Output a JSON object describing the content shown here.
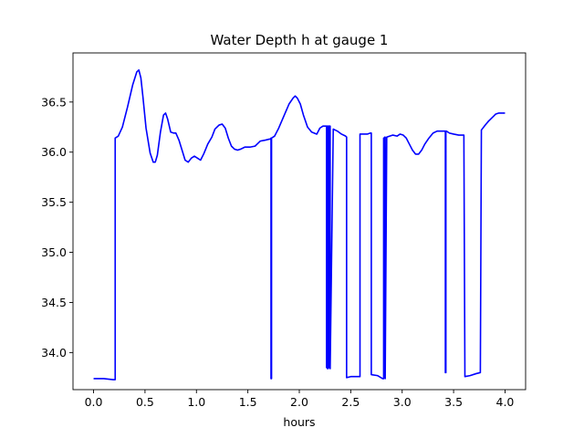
{
  "chart_data": {
    "type": "line",
    "title": "Water Depth h at gauge 1",
    "xlabel": "hours",
    "ylabel": "",
    "xlim": [
      -0.2,
      4.2
    ],
    "ylim": [
      33.63,
      36.99
    ],
    "xticks": [
      0.0,
      0.5,
      1.0,
      1.5,
      2.0,
      2.5,
      3.0,
      3.5,
      4.0
    ],
    "xtick_labels": [
      "0.0",
      "0.5",
      "1.0",
      "1.5",
      "2.0",
      "2.5",
      "3.0",
      "3.5",
      "4.0"
    ],
    "yticks": [
      34.0,
      34.5,
      35.0,
      35.5,
      36.0,
      36.5
    ],
    "ytick_labels": [
      "34.0",
      "34.5",
      "35.0",
      "35.5",
      "36.0",
      "36.5"
    ],
    "grid": false,
    "legend": "none",
    "series": [
      {
        "color": "#0000ff",
        "x": [
          0.0,
          0.1,
          0.19,
          0.21,
          0.21,
          0.24,
          0.28,
          0.33,
          0.38,
          0.42,
          0.44,
          0.46,
          0.48,
          0.51,
          0.55,
          0.58,
          0.6,
          0.62,
          0.65,
          0.68,
          0.7,
          0.72,
          0.75,
          0.78,
          0.8,
          0.83,
          0.86,
          0.89,
          0.92,
          0.95,
          0.98,
          1.01,
          1.04,
          1.07,
          1.11,
          1.15,
          1.18,
          1.22,
          1.25,
          1.28,
          1.31,
          1.34,
          1.37,
          1.4,
          1.43,
          1.47,
          1.52,
          1.57,
          1.62,
          1.67,
          1.71,
          1.72,
          1.725,
          1.725,
          1.73,
          1.73,
          1.76,
          1.8,
          1.85,
          1.9,
          1.94,
          1.96,
          1.98,
          2.01,
          2.04,
          2.08,
          2.12,
          2.17,
          2.2,
          2.23,
          2.26,
          2.265,
          2.265,
          2.27,
          2.27,
          2.275,
          2.275,
          2.28,
          2.28,
          2.29,
          2.29,
          2.295,
          2.295,
          2.3,
          2.3,
          2.33,
          2.37,
          2.41,
          2.45,
          2.46,
          2.46,
          2.5,
          2.55,
          2.58,
          2.59,
          2.59,
          2.63,
          2.66,
          2.69,
          2.7,
          2.7,
          2.76,
          2.81,
          2.82,
          2.82,
          2.825,
          2.825,
          2.83,
          2.83,
          2.835,
          2.835,
          2.85,
          2.88,
          2.91,
          2.95,
          2.98,
          3.01,
          3.04,
          3.07,
          3.1,
          3.13,
          3.16,
          3.19,
          3.22,
          3.26,
          3.3,
          3.34,
          3.38,
          3.41,
          3.42,
          3.42,
          3.425,
          3.425,
          3.43,
          3.43,
          3.46,
          3.5,
          3.55,
          3.6,
          3.61,
          3.61,
          3.66,
          3.72,
          3.76,
          3.77,
          3.77,
          3.8,
          3.84,
          3.88,
          3.91,
          3.94,
          3.97,
          4.0
        ],
        "y": [
          33.74,
          33.74,
          33.73,
          33.73,
          36.14,
          36.16,
          36.25,
          36.45,
          36.67,
          36.8,
          36.82,
          36.74,
          36.55,
          36.24,
          35.99,
          35.9,
          35.9,
          35.97,
          36.2,
          36.37,
          36.39,
          36.33,
          36.2,
          36.19,
          36.19,
          36.12,
          36.02,
          35.92,
          35.9,
          35.94,
          35.96,
          35.94,
          35.92,
          35.98,
          36.08,
          36.15,
          36.23,
          36.27,
          36.28,
          36.24,
          36.14,
          36.06,
          36.03,
          36.02,
          36.03,
          36.05,
          36.05,
          36.06,
          36.11,
          36.12,
          36.13,
          36.13,
          36.14,
          33.74,
          33.74,
          36.14,
          36.16,
          36.24,
          36.36,
          36.48,
          36.54,
          36.56,
          36.54,
          36.48,
          36.37,
          36.25,
          36.2,
          36.18,
          36.24,
          36.26,
          36.26,
          36.26,
          33.85,
          33.85,
          36.26,
          36.26,
          33.84,
          33.84,
          36.26,
          36.26,
          33.85,
          33.85,
          36.26,
          36.26,
          33.84,
          36.23,
          36.21,
          36.18,
          36.16,
          36.15,
          33.75,
          33.76,
          33.76,
          33.76,
          33.76,
          36.18,
          36.18,
          36.18,
          36.19,
          36.19,
          33.78,
          33.77,
          33.74,
          33.74,
          36.14,
          36.14,
          33.75,
          33.75,
          36.15,
          36.15,
          33.74,
          36.15,
          36.16,
          36.17,
          36.16,
          36.18,
          36.17,
          36.14,
          36.08,
          36.02,
          35.98,
          35.98,
          36.02,
          36.08,
          36.14,
          36.19,
          36.21,
          36.21,
          36.21,
          36.21,
          33.8,
          33.8,
          36.21,
          36.21,
          36.21,
          36.19,
          36.18,
          36.17,
          36.17,
          33.76,
          33.76,
          33.77,
          33.79,
          33.8,
          36.21,
          36.22,
          36.26,
          36.31,
          36.35,
          36.38,
          36.39,
          36.39,
          36.39
        ]
      }
    ]
  }
}
